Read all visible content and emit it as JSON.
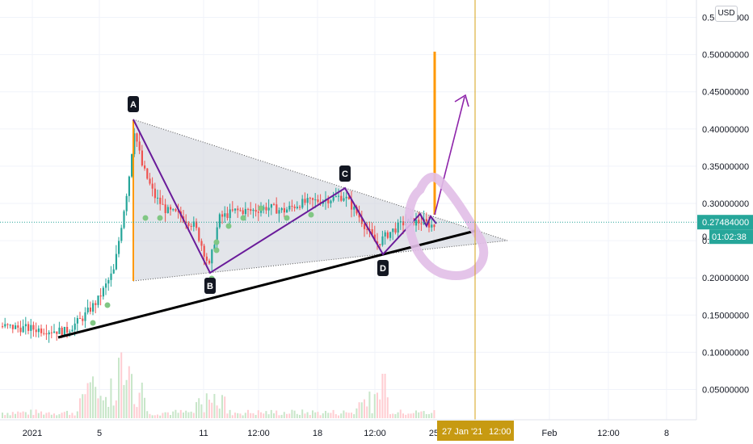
{
  "currency": "USD",
  "axis": {
    "price_ticks": [
      "0.05000000",
      "0.10000000",
      "0.15000000",
      "0.20000000",
      "0.25000000",
      "0.30000000",
      "0.35000000",
      "0.40000000",
      "0.45000000",
      "0.50000000",
      "0.55000000"
    ],
    "time_ticks": [
      "2021",
      "5",
      "11",
      "12:00",
      "18",
      "12:00",
      "25",
      "Feb",
      "12:00",
      "8"
    ],
    "crosshair_time": "27 Jan '21",
    "crosshair_time_2": "12:00"
  },
  "price_label": {
    "last": "0.27484000",
    "countdown": "01:02:38",
    "partial": "0."
  },
  "pattern_points": [
    "A",
    "B",
    "C",
    "D"
  ],
  "colors": {
    "up": "#26a69a",
    "down": "#ef5350",
    "accent": "#ff9800",
    "purple": "#7b1fa2",
    "crosshair": "#d4a017",
    "last_price": "#26a69a"
  },
  "chart_data": {
    "type": "candlestick",
    "title": "",
    "ylim": [
      0.0,
      0.56
    ],
    "y_ticks": [
      0.05,
      0.1,
      0.15,
      0.2,
      0.25,
      0.3,
      0.35,
      0.4,
      0.45,
      0.5,
      0.55
    ],
    "last_price": 0.27484,
    "pattern": [
      {
        "label": "A",
        "price": 0.41
      },
      {
        "label": "B",
        "price": 0.205
      },
      {
        "label": "C",
        "price": 0.32
      },
      {
        "label": "D",
        "price": 0.228
      }
    ],
    "trendlines": [
      {
        "name": "triangle_upper",
        "from": 0.41,
        "to": 0.245
      },
      {
        "name": "triangle_lower",
        "from": 0.192,
        "to": 0.245
      },
      {
        "name": "support",
        "from": 0.115,
        "to": 0.265
      }
    ],
    "spike_high": 0.5,
    "projection_target": 0.44,
    "grid": true
  }
}
